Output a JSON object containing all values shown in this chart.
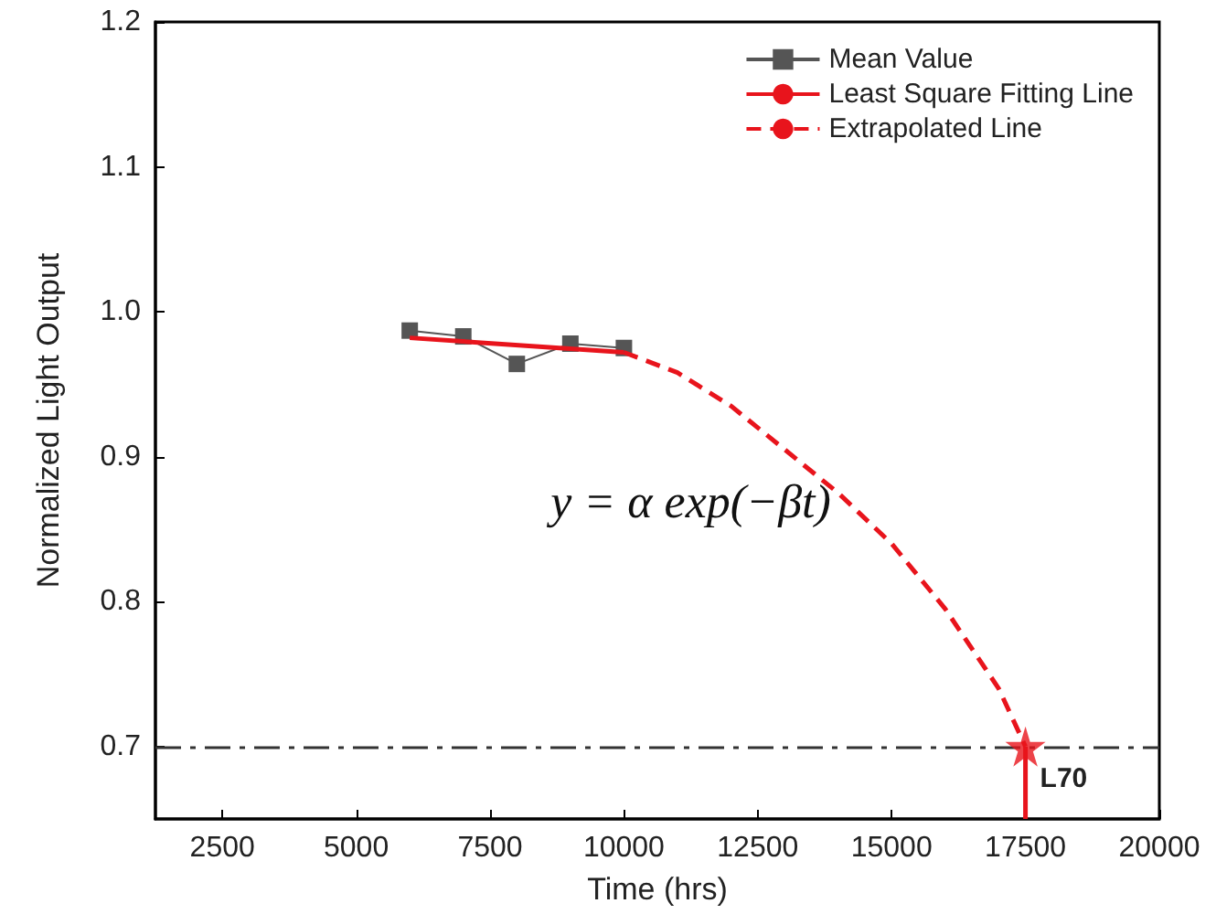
{
  "chart_data": {
    "type": "line",
    "xlabel": "Time (hrs)",
    "ylabel": "Normalized Light Output",
    "xlim": [
      1250,
      20000
    ],
    "xticks": [
      2500,
      5000,
      7500,
      10000,
      12500,
      15000,
      17500,
      20000
    ],
    "ylim": [
      0.65,
      1.2
    ],
    "yticks": [
      {
        "value": 0.7,
        "label": "0.7"
      },
      {
        "value": 0.8,
        "label": "0.8"
      },
      {
        "value": 0.9,
        "label": "0.9"
      },
      {
        "value": 1,
        "label": "1.0"
      },
      {
        "value": 1.1,
        "label": "1.1"
      },
      {
        "value": 1.2,
        "label": "1.2"
      }
    ],
    "grid": false,
    "legend": "top right",
    "series": [
      {
        "name": "Mean Value",
        "color": "#555555",
        "marker": "square",
        "line_style": "solid",
        "x": [
          6000,
          7000,
          8000,
          9000,
          10000
        ],
        "values": [
          0.987,
          0.983,
          0.964,
          0.978,
          0.975
        ]
      },
      {
        "name": "Least Square Fitting Line",
        "color": "#e8141c",
        "marker": "none",
        "line_style": "solid",
        "x": [
          6000,
          10000
        ],
        "values": [
          0.982,
          0.972
        ]
      },
      {
        "name": "Extrapolated Line",
        "color": "#e8141c",
        "marker": "none",
        "line_style": "dashed",
        "x": [
          10000,
          11000,
          12000,
          13000,
          14000,
          15000,
          16000,
          17000,
          17500
        ],
        "values": [
          0.972,
          0.958,
          0.935,
          0.905,
          0.875,
          0.84,
          0.795,
          0.74,
          0.7
        ]
      },
      {
        "color": "#e8141c",
        "marker": "none",
        "line_style": "solid",
        "x": [
          17500,
          17500
        ],
        "values": [
          0.7,
          0.65
        ]
      },
      {
        "type": "scatter",
        "color": "#e8141c",
        "marker": "star",
        "x": [
          17500
        ],
        "values": [
          0.7
        ]
      }
    ],
    "ref_lines": [
      {
        "axis": "y",
        "value": 0.7,
        "color": "#333333",
        "line_style": "dashed"
      }
    ],
    "annotations": [
      "L70",
      "y = α exp(−βt)"
    ]
  }
}
